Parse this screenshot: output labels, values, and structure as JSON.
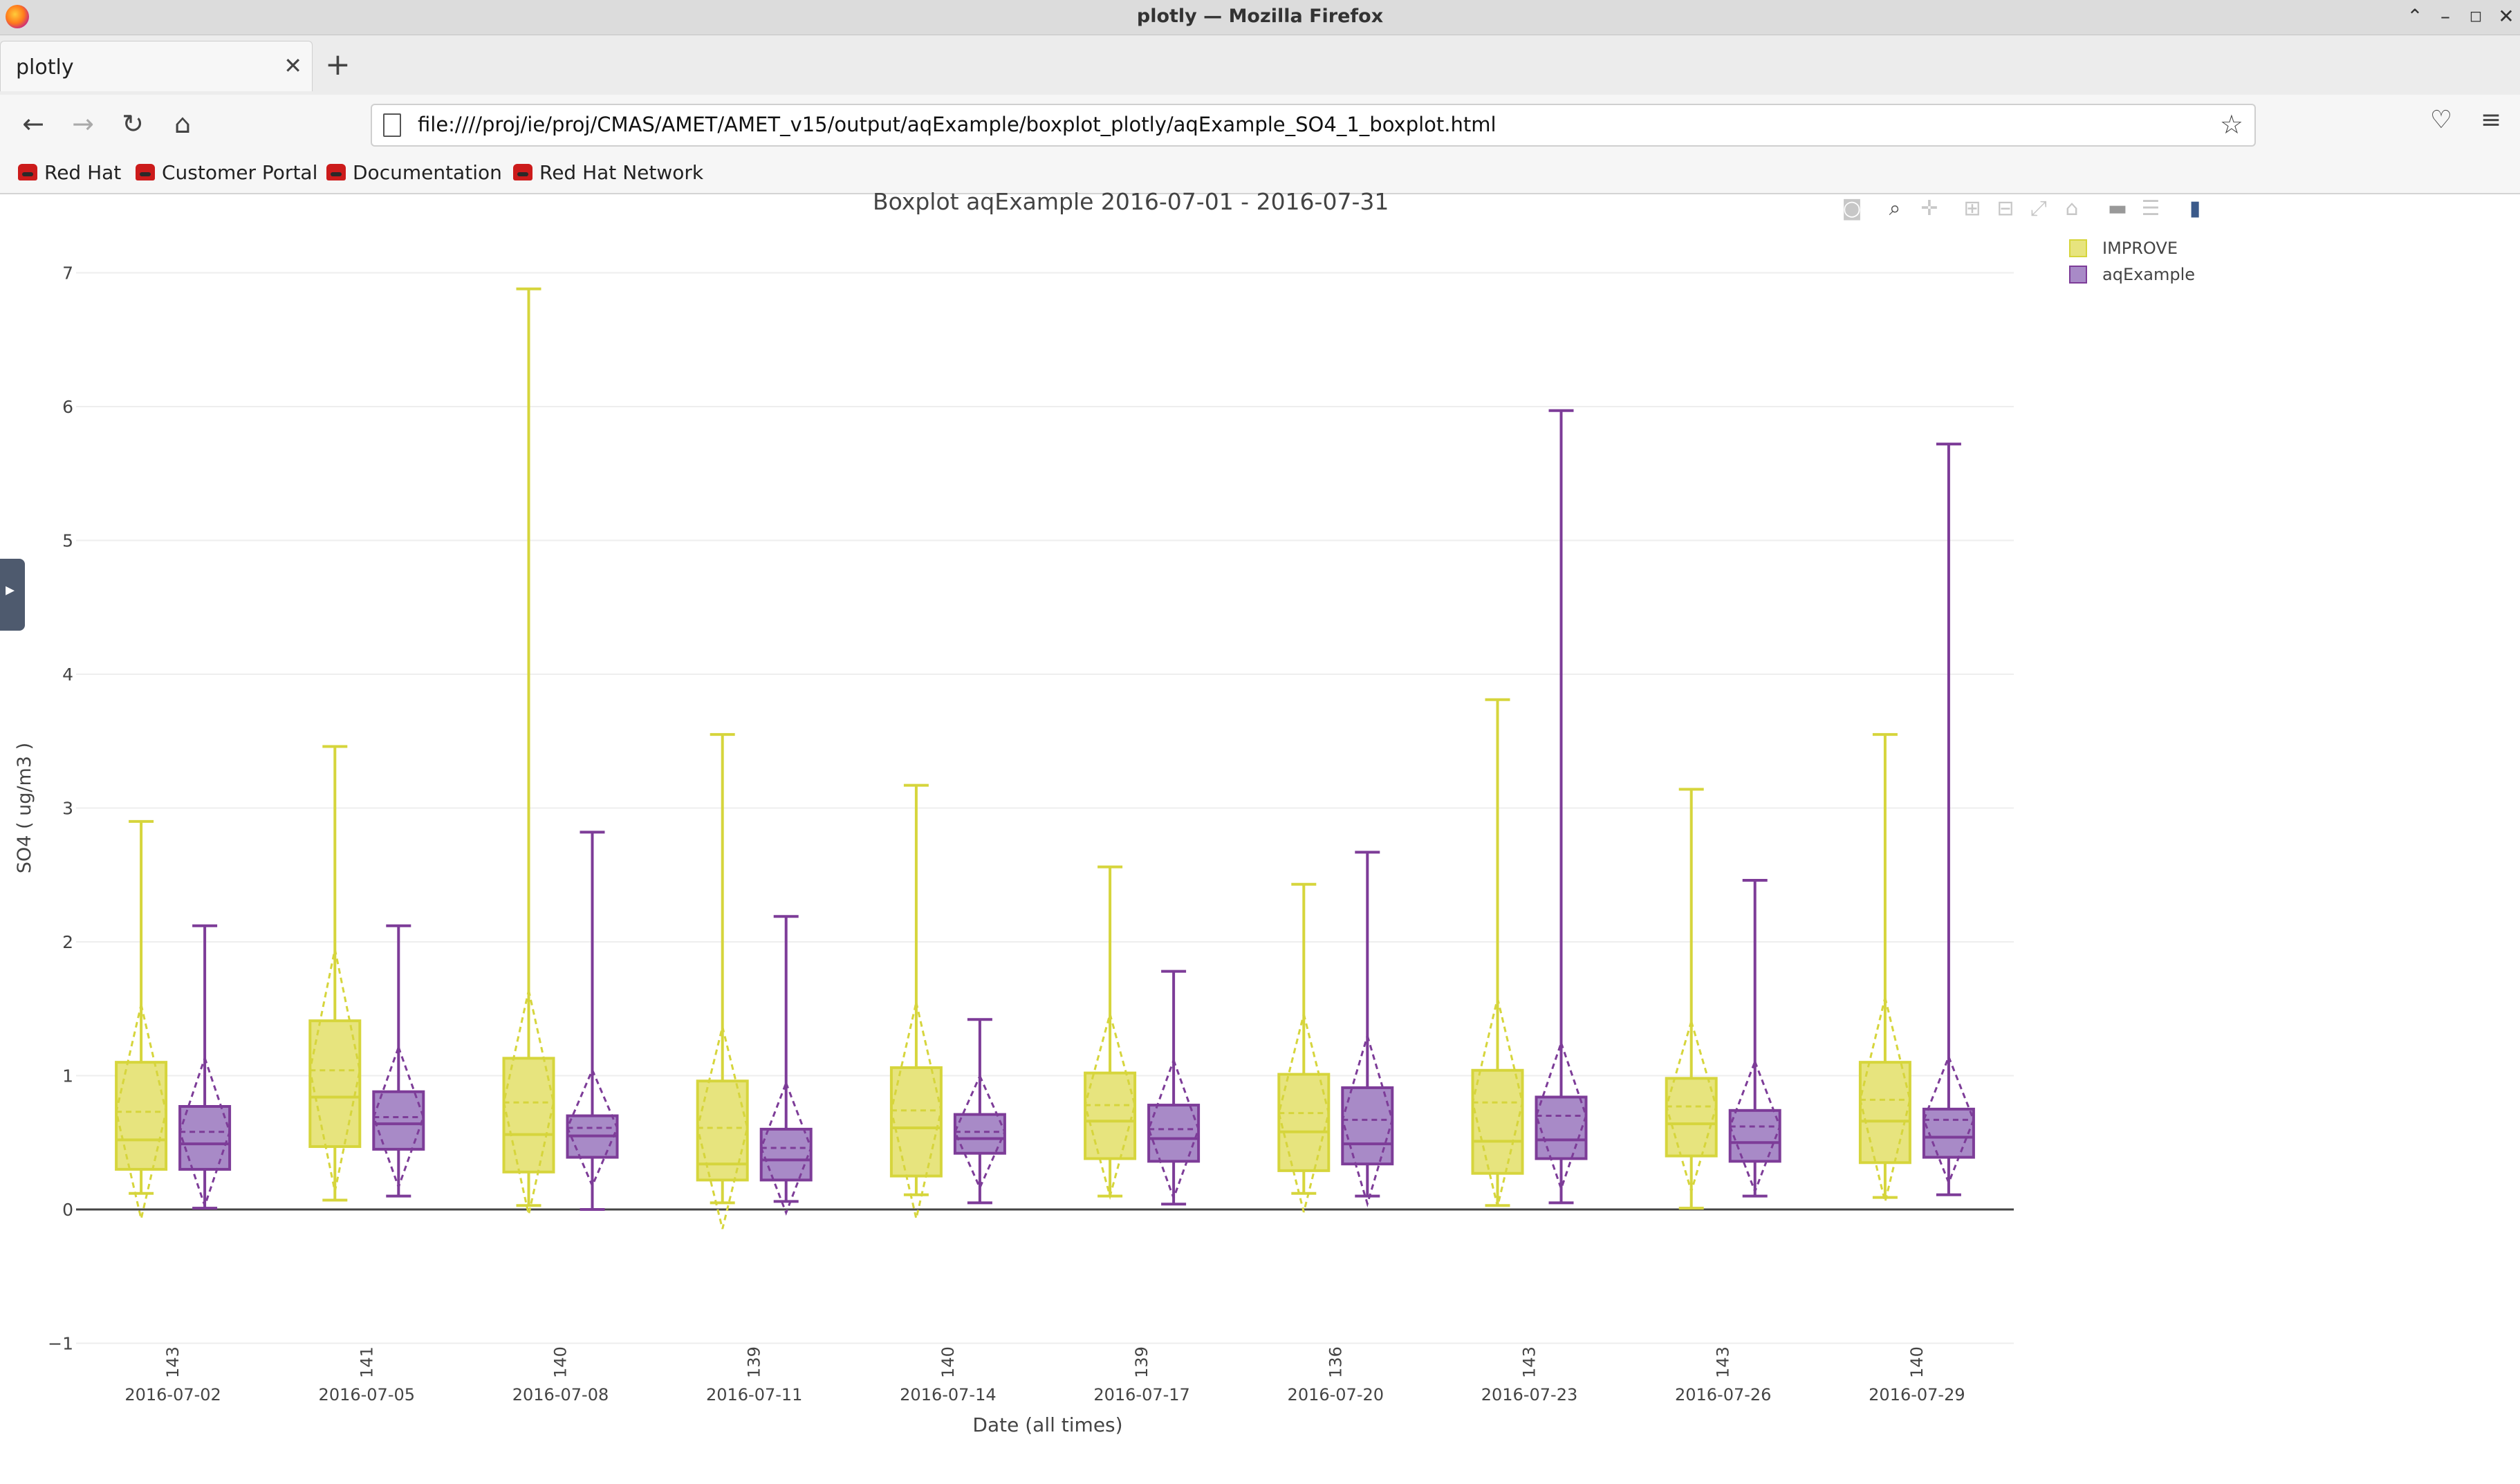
{
  "window": {
    "title": "plotly — Mozilla Firefox"
  },
  "tabs": [
    {
      "label": "plotly",
      "active": true
    }
  ],
  "toolbar": {
    "url": "file:////proj/ie/proj/CMAS/AMET/AMET_v15/output/aqExample/boxplot_plotly/aqExample_SO4_1_boxplot.html"
  },
  "bookmarks": [
    {
      "label": "Red Hat"
    },
    {
      "label": "Customer Portal"
    },
    {
      "label": "Documentation"
    },
    {
      "label": "Red Hat Network"
    }
  ],
  "chart_data": {
    "type": "box",
    "title": "Boxplot aqExample 2016-07-01 - 2016-07-31",
    "xlabel": "Date (all times)",
    "ylabel": "SO4 ( ug/m3 )",
    "ylim": [
      -1,
      7.4
    ],
    "yticks": [
      -1,
      0,
      1,
      2,
      3,
      4,
      5,
      6,
      7
    ],
    "legend_position": "top-right",
    "categories": [
      "2016-07-02",
      "2016-07-05",
      "2016-07-08",
      "2016-07-11",
      "2016-07-14",
      "2016-07-17",
      "2016-07-20",
      "2016-07-23",
      "2016-07-26",
      "2016-07-29"
    ],
    "counts": [
      "143",
      "141",
      "140",
      "139",
      "140",
      "139",
      "136",
      "143",
      "143",
      "140"
    ],
    "series": [
      {
        "name": "IMPROVE",
        "color": "#d6d53c",
        "fill": "#e7e47e",
        "boxes": [
          {
            "min": 0.12,
            "q1": 0.3,
            "median": 0.52,
            "q3": 1.1,
            "max": 2.9,
            "mean": 0.73
          },
          {
            "min": 0.07,
            "q1": 0.47,
            "median": 0.84,
            "q3": 1.41,
            "max": 3.46,
            "mean": 1.04
          },
          {
            "min": 0.03,
            "q1": 0.28,
            "median": 0.56,
            "q3": 1.13,
            "max": 6.88,
            "mean": 0.8
          },
          {
            "min": 0.05,
            "q1": 0.22,
            "median": 0.34,
            "q3": 0.96,
            "max": 3.55,
            "mean": 0.61
          },
          {
            "min": 0.11,
            "q1": 0.25,
            "median": 0.61,
            "q3": 1.06,
            "max": 3.17,
            "mean": 0.74
          },
          {
            "min": 0.1,
            "q1": 0.38,
            "median": 0.66,
            "q3": 1.02,
            "max": 2.56,
            "mean": 0.78
          },
          {
            "min": 0.12,
            "q1": 0.29,
            "median": 0.58,
            "q3": 1.01,
            "max": 2.43,
            "mean": 0.72
          },
          {
            "min": 0.03,
            "q1": 0.27,
            "median": 0.51,
            "q3": 1.04,
            "max": 3.81,
            "mean": 0.8
          },
          {
            "min": 0.01,
            "q1": 0.4,
            "median": 0.64,
            "q3": 0.98,
            "max": 3.14,
            "mean": 0.77
          },
          {
            "min": 0.09,
            "q1": 0.35,
            "median": 0.66,
            "q3": 1.1,
            "max": 3.55,
            "mean": 0.82
          }
        ]
      },
      {
        "name": "aqExample",
        "color": "#7d3c98",
        "fill": "#a88ac7",
        "boxes": [
          {
            "min": 0.01,
            "q1": 0.3,
            "median": 0.49,
            "q3": 0.77,
            "max": 2.12,
            "mean": 0.58
          },
          {
            "min": 0.1,
            "q1": 0.45,
            "median": 0.64,
            "q3": 0.88,
            "max": 2.12,
            "mean": 0.69
          },
          {
            "min": 0.0,
            "q1": 0.39,
            "median": 0.55,
            "q3": 0.7,
            "max": 2.82,
            "mean": 0.61
          },
          {
            "min": 0.06,
            "q1": 0.22,
            "median": 0.37,
            "q3": 0.6,
            "max": 2.19,
            "mean": 0.46
          },
          {
            "min": 0.05,
            "q1": 0.42,
            "median": 0.53,
            "q3": 0.71,
            "max": 1.42,
            "mean": 0.58
          },
          {
            "min": 0.04,
            "q1": 0.36,
            "median": 0.53,
            "q3": 0.78,
            "max": 1.78,
            "mean": 0.6
          },
          {
            "min": 0.1,
            "q1": 0.34,
            "median": 0.49,
            "q3": 0.91,
            "max": 2.67,
            "mean": 0.67
          },
          {
            "min": 0.05,
            "q1": 0.38,
            "median": 0.52,
            "q3": 0.84,
            "max": 5.97,
            "mean": 0.7
          },
          {
            "min": 0.1,
            "q1": 0.36,
            "median": 0.5,
            "q3": 0.74,
            "max": 2.46,
            "mean": 0.62
          },
          {
            "min": 0.11,
            "q1": 0.39,
            "median": 0.54,
            "q3": 0.75,
            "max": 5.72,
            "mean": 0.67
          }
        ]
      }
    ]
  }
}
